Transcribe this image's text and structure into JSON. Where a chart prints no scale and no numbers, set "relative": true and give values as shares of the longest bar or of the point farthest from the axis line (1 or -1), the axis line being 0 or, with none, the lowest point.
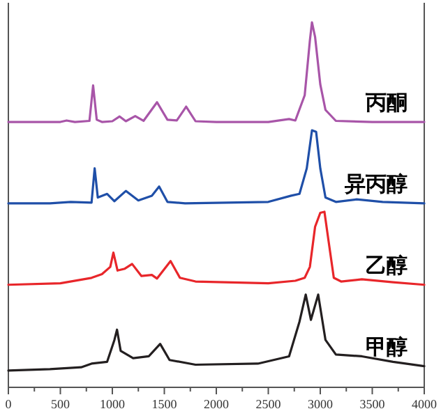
{
  "chart_data": {
    "type": "line",
    "relative": true,
    "xlim": [
      0,
      4000
    ],
    "tick_labels": "x",
    "xticks": [
      0,
      {
        "value": 250,
        "label": null
      },
      500,
      {
        "value": 750,
        "label": null
      },
      1000,
      {
        "value": 1250,
        "label": null
      },
      1500,
      {
        "value": 1750,
        "label": null
      },
      2000,
      {
        "value": 2250,
        "label": null
      },
      2500,
      {
        "value": 2750,
        "label": null
      },
      3000,
      {
        "value": 3250,
        "label": null
      },
      3500,
      {
        "value": 3750,
        "label": null
      },
      4000
    ],
    "series": [
      {
        "name": "丙酮",
        "color": "#a855a8",
        "x": [
          0,
          500,
          560,
          640,
          780,
          815,
          850,
          900,
          1000,
          1070,
          1130,
          1220,
          1300,
          1430,
          1530,
          1620,
          1710,
          1800,
          2000,
          2500,
          2700,
          2760,
          2850,
          2900,
          2920,
          2950,
          3000,
          3050,
          3150,
          3500,
          4000
        ],
        "values": [
          0.727,
          0.727,
          0.731,
          0.727,
          0.73,
          0.827,
          0.733,
          0.727,
          0.729,
          0.742,
          0.729,
          0.743,
          0.73,
          0.781,
          0.733,
          0.731,
          0.769,
          0.729,
          0.727,
          0.727,
          0.735,
          0.731,
          0.8,
          0.95,
          1,
          0.96,
          0.83,
          0.76,
          0.73,
          0.727,
          0.727
        ]
      },
      {
        "name": "异丙醇",
        "color": "#1f4fa8",
        "x": [
          0,
          400,
          600,
          800,
          830,
          860,
          950,
          1020,
          1130,
          1250,
          1380,
          1450,
          1530,
          1700,
          2500,
          2720,
          2800,
          2870,
          2920,
          2960,
          3000,
          3050,
          3150,
          3350,
          3600,
          4000
        ],
        "values": [
          0.504,
          0.504,
          0.508,
          0.506,
          0.6,
          0.52,
          0.53,
          0.51,
          0.538,
          0.512,
          0.525,
          0.55,
          0.508,
          0.504,
          0.508,
          0.525,
          0.53,
          0.6,
          0.704,
          0.7,
          0.6,
          0.52,
          0.508,
          0.515,
          0.508,
          0.504
        ]
      },
      {
        "name": "乙醇",
        "color": "#e8262a",
        "x": [
          0,
          500,
          800,
          900,
          980,
          1010,
          1050,
          1120,
          1190,
          1280,
          1380,
          1430,
          1560,
          1650,
          1800,
          2500,
          2760,
          2850,
          2900,
          2950,
          3000,
          3040,
          3080,
          3130,
          3200,
          3400,
          3700,
          4000
        ],
        "values": [
          0.281,
          0.285,
          0.3,
          0.31,
          0.33,
          0.369,
          0.32,
          0.325,
          0.338,
          0.305,
          0.308,
          0.298,
          0.346,
          0.3,
          0.29,
          0.285,
          0.292,
          0.3,
          0.33,
          0.44,
          0.478,
          0.481,
          0.4,
          0.3,
          0.29,
          0.296,
          0.288,
          0.281
        ]
      },
      {
        "name": "甲醇",
        "color": "#231f20",
        "x": [
          0,
          400,
          700,
          800,
          950,
          1020,
          1045,
          1080,
          1200,
          1350,
          1460,
          1550,
          1800,
          2400,
          2700,
          2800,
          2860,
          2910,
          2980,
          3050,
          3150,
          3400,
          3700,
          4000
        ],
        "values": [
          0.046,
          0.05,
          0.055,
          0.065,
          0.07,
          0.13,
          0.158,
          0.1,
          0.08,
          0.085,
          0.119,
          0.075,
          0.062,
          0.065,
          0.085,
          0.18,
          0.254,
          0.185,
          0.254,
          0.13,
          0.09,
          0.085,
          0.07,
          0.058
        ]
      }
    ]
  }
}
